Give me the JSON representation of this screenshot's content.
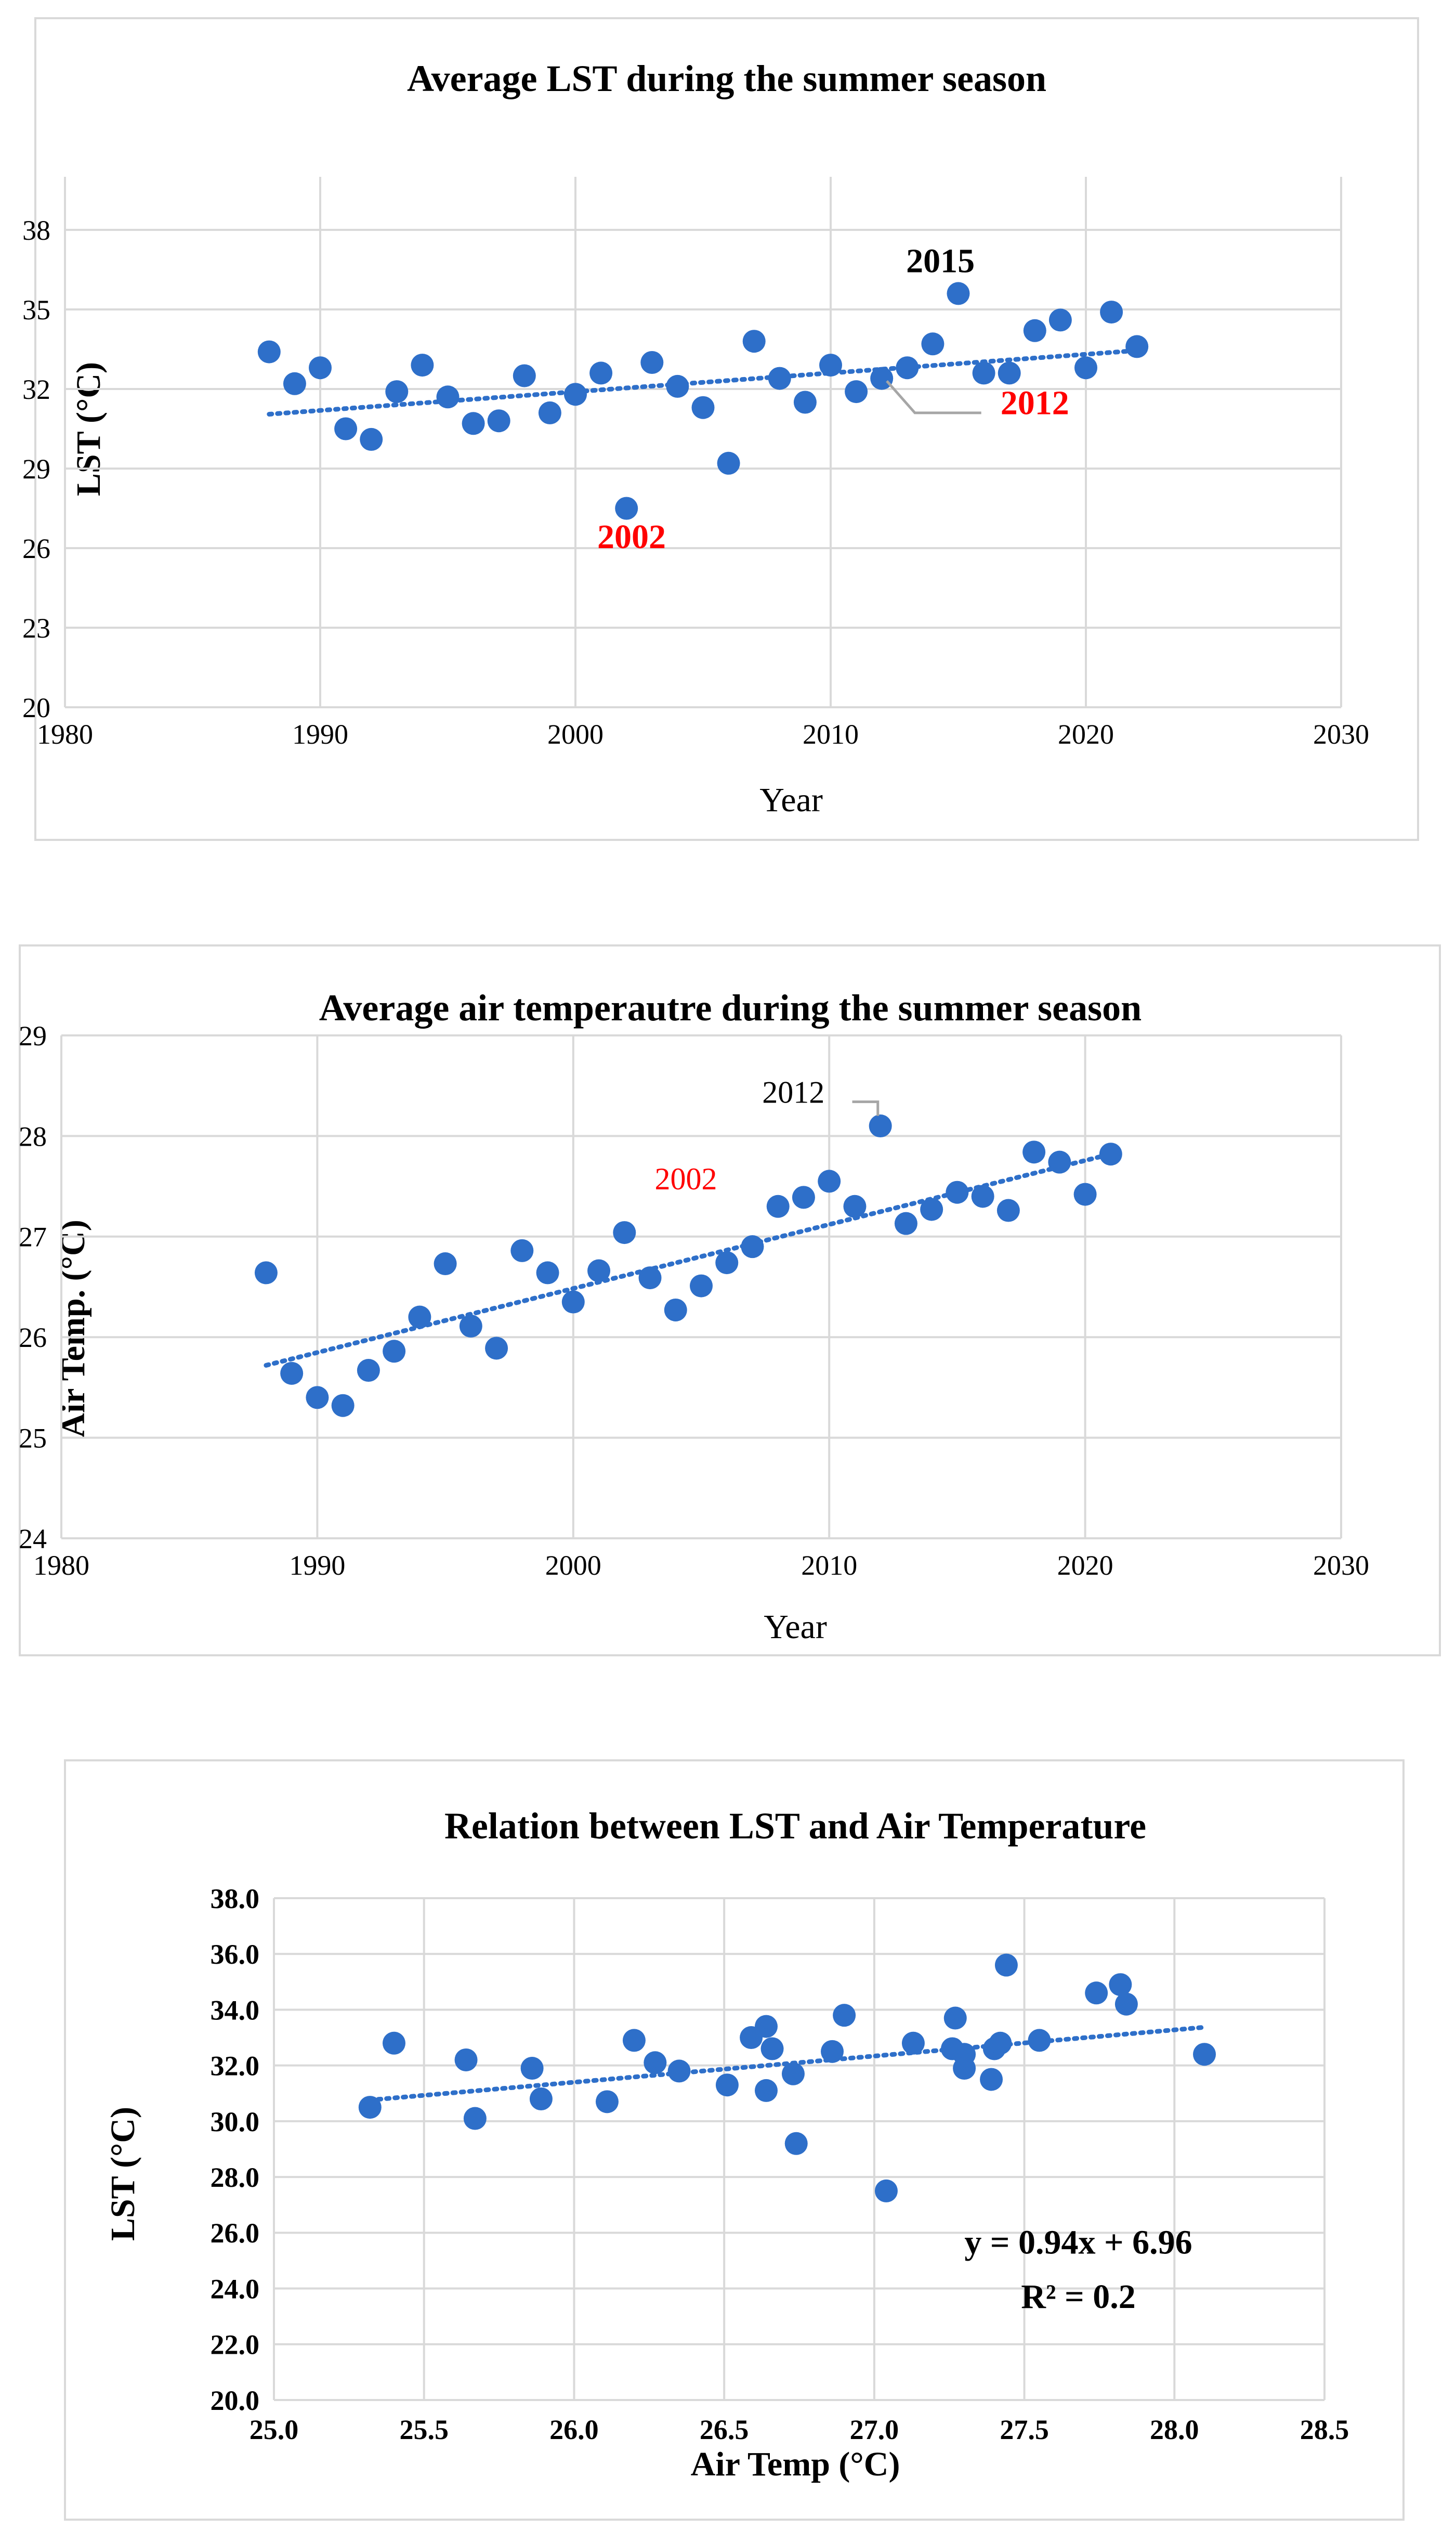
{
  "colors": {
    "point": "#2e6fc9",
    "trend": "#2e6fc9",
    "grid": "#d9d9d9",
    "axis": "#d9d9d9",
    "frame": "#d9d9d9",
    "text": "#000000",
    "highlight": "#ff0000",
    "leader": "#a6a6a6"
  },
  "chart_data": [
    {
      "type": "scatter",
      "title": "Average LST during the summer season",
      "xlabel": "Year",
      "ylabel": "LST (°C)",
      "xlim": [
        1980,
        2030
      ],
      "ylim": [
        20,
        40
      ],
      "x_ticks": [
        "1980",
        "1990",
        "2000",
        "2010",
        "2020",
        "2030"
      ],
      "y_ticks": [
        "20",
        "23",
        "26",
        "29",
        "32",
        "35",
        "38"
      ],
      "grid": true,
      "series": [
        {
          "name": "LST",
          "x": [
            1988,
            1989,
            1990,
            1991,
            1992,
            1993,
            1994,
            1995,
            1996,
            1997,
            1998,
            1999,
            2000,
            2001,
            2002,
            2003,
            2004,
            2005,
            2006,
            2007,
            2008,
            2009,
            2010,
            2011,
            2012,
            2013,
            2014,
            2015,
            2016,
            2017,
            2018,
            2019,
            2020,
            2021,
            2022
          ],
          "y": [
            33.4,
            32.2,
            32.8,
            30.5,
            30.1,
            31.9,
            32.9,
            31.7,
            30.7,
            30.8,
            32.5,
            31.1,
            31.8,
            32.6,
            27.5,
            33.0,
            32.1,
            31.3,
            29.2,
            33.8,
            32.4,
            31.5,
            32.9,
            31.9,
            32.4,
            32.8,
            33.7,
            35.6,
            32.6,
            32.6,
            34.2,
            34.6,
            32.8,
            34.9,
            33.6
          ]
        }
      ],
      "trendline": {
        "type": "linear",
        "x": [
          1988,
          2022
        ],
        "y": [
          31.05,
          33.45
        ]
      },
      "annotations": [
        {
          "text": "2015",
          "x": 2014.3,
          "y": 36.4,
          "style": "bold"
        },
        {
          "text": "2012",
          "x": 2018.0,
          "y": 31.05,
          "style": "bold-red",
          "leader": [
            [
              2012.2,
              32.3
            ],
            [
              2013.3,
              31.1
            ],
            [
              2015.9,
              31.1
            ]
          ]
        },
        {
          "text": "2002",
          "x": 2002.2,
          "y": 26.0,
          "style": "bold-red"
        }
      ]
    },
    {
      "type": "scatter",
      "title": "Average air temperautre during the summer season",
      "xlabel": "Year",
      "ylabel": "Air Temp. (°C)",
      "xlim": [
        1980,
        2030
      ],
      "ylim": [
        24,
        29
      ],
      "x_ticks": [
        "1980",
        "1990",
        "2000",
        "2010",
        "2020",
        "2030"
      ],
      "y_ticks": [
        "24",
        "25",
        "26",
        "27",
        "28",
        "29"
      ],
      "grid": true,
      "series": [
        {
          "name": "Air Temp",
          "x": [
            1988,
            1989,
            1990,
            1991,
            1992,
            1993,
            1994,
            1995,
            1996,
            1997,
            1998,
            1999,
            2000,
            2001,
            2002,
            2003,
            2004,
            2005,
            2006,
            2007,
            2008,
            2009,
            2010,
            2011,
            2012,
            2013,
            2014,
            2015,
            2016,
            2017,
            2018,
            2019,
            2020,
            2021
          ],
          "y": [
            26.64,
            25.64,
            25.4,
            25.32,
            25.67,
            25.86,
            26.2,
            26.73,
            26.11,
            25.89,
            26.86,
            26.64,
            26.35,
            26.66,
            27.04,
            26.59,
            26.27,
            26.51,
            26.74,
            26.9,
            27.3,
            27.39,
            27.55,
            27.3,
            28.1,
            27.13,
            27.27,
            27.44,
            27.4,
            27.26,
            27.84,
            27.74,
            27.42,
            27.82
          ]
        }
      ],
      "trendline": {
        "type": "linear",
        "x": [
          1988,
          2021
        ],
        "y": [
          25.72,
          27.82
        ]
      },
      "annotations": [
        {
          "text": "2012",
          "x": 2008.6,
          "y": 28.33,
          "style": "normal",
          "leader": [
            [
              2010.9,
              28.34
            ],
            [
              2011.9,
              28.34
            ],
            [
              2011.9,
              28.2
            ]
          ]
        },
        {
          "text": "2002",
          "x": 2004.4,
          "y": 27.47,
          "style": "red"
        }
      ]
    },
    {
      "type": "scatter",
      "title": "Relation between LST and Air Temperature",
      "xlabel": "Air Temp (°C)",
      "ylabel": "LST (°C)",
      "xlim": [
        25.0,
        28.5
      ],
      "ylim": [
        20.0,
        38.0
      ],
      "x_ticks": [
        "25.0",
        "25.5",
        "26.0",
        "26.5",
        "27.0",
        "27.5",
        "28.0",
        "28.5"
      ],
      "y_ticks": [
        "20.0",
        "22.0",
        "24.0",
        "26.0",
        "28.0",
        "30.0",
        "32.0",
        "34.0",
        "36.0",
        "38.0"
      ],
      "grid": true,
      "series": [
        {
          "name": "LST vs Air Temp",
          "x": [
            26.64,
            25.64,
            25.4,
            25.32,
            25.67,
            25.86,
            26.2,
            26.73,
            26.11,
            25.89,
            26.86,
            26.64,
            26.35,
            26.66,
            27.04,
            26.59,
            26.27,
            26.51,
            26.74,
            26.9,
            27.3,
            27.39,
            27.55,
            27.3,
            28.1,
            27.13,
            27.27,
            27.44,
            27.4,
            27.26,
            27.84,
            27.74,
            27.42,
            27.82
          ],
          "y": [
            33.4,
            32.2,
            32.8,
            30.5,
            30.1,
            31.9,
            32.9,
            31.7,
            30.7,
            30.8,
            32.5,
            31.1,
            31.8,
            32.6,
            27.5,
            33.0,
            32.1,
            31.3,
            29.2,
            33.8,
            32.4,
            31.5,
            32.9,
            31.9,
            32.4,
            32.8,
            33.7,
            35.6,
            32.6,
            32.6,
            34.2,
            34.6,
            32.8,
            34.9
          ]
        }
      ],
      "trendline": {
        "type": "linear",
        "x": [
          25.32,
          28.1
        ],
        "y": [
          30.76,
          33.37
        ]
      },
      "annotations": [
        {
          "text": "y = 0.94x + 6.96",
          "x": 27.68,
          "y": 25.25,
          "style": "bold"
        },
        {
          "text": "R² = 0.2",
          "x": 27.68,
          "y": 23.3,
          "style": "bold"
        }
      ]
    }
  ]
}
